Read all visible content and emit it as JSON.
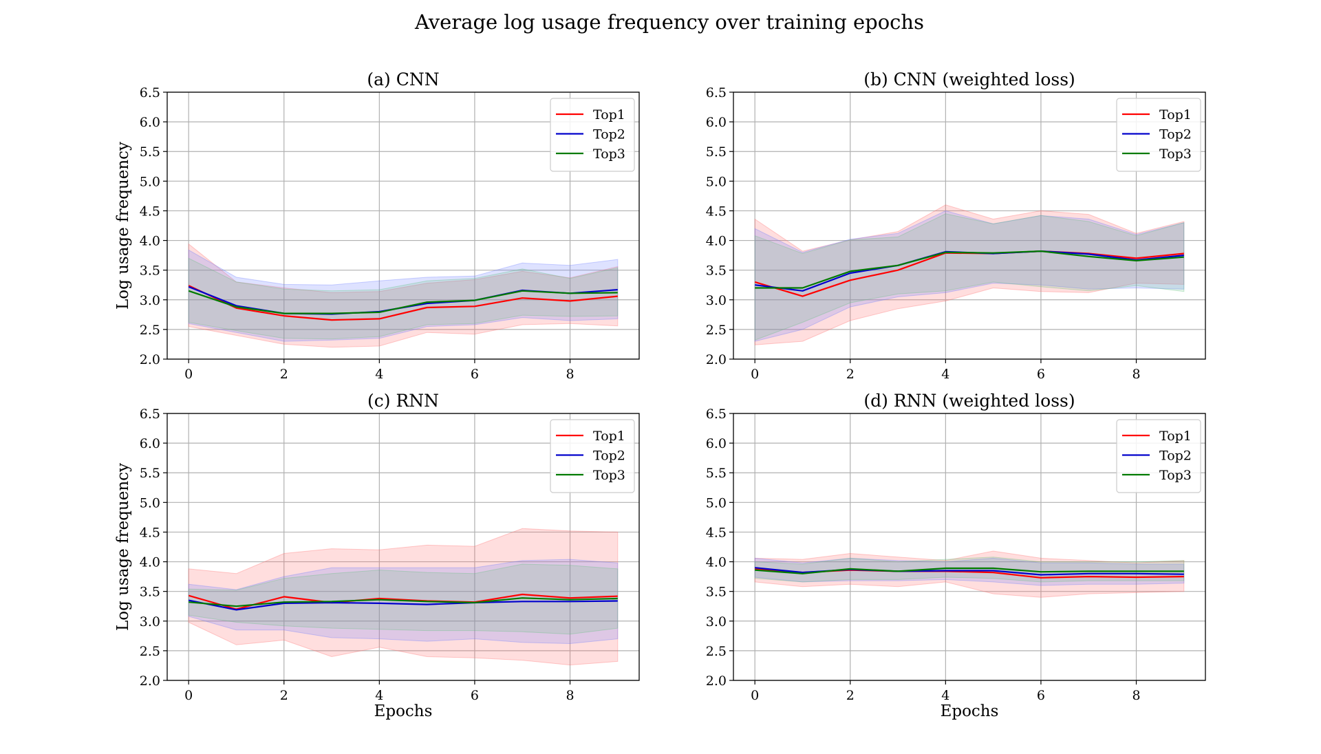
{
  "figure": {
    "title": "Average log usage frequency over training epochs"
  },
  "colors": {
    "Top1": "#ff0000",
    "Top2": "#0000cc",
    "Top3": "#007a00",
    "Top1_band": "#ff6a6a",
    "Top2_band": "#6a7cff",
    "Top3_band": "#5fbf7a"
  },
  "chart_data": [
    {
      "type": "line",
      "title": "(a) CNN",
      "xlabel": "",
      "ylabel": "Log usage frequency",
      "xlim": [
        -0.45,
        9.45
      ],
      "ylim": [
        2.0,
        6.5
      ],
      "x_ticks": [
        0,
        2,
        4,
        6,
        8
      ],
      "y_ticks": [
        "2.0",
        "2.5",
        "3.0",
        "3.5",
        "4.0",
        "4.5",
        "5.0",
        "5.5",
        "6.0",
        "6.5"
      ],
      "grid": true,
      "legend": "upper-right",
      "x": [
        0,
        1,
        2,
        3,
        4,
        5,
        6,
        7,
        8,
        9
      ],
      "series": [
        {
          "name": "Top1",
          "values": [
            3.24,
            2.86,
            2.73,
            2.66,
            2.68,
            2.87,
            2.89,
            3.03,
            2.98,
            3.06
          ],
          "lower": [
            2.55,
            2.4,
            2.25,
            2.2,
            2.22,
            2.45,
            2.42,
            2.58,
            2.6,
            2.56
          ],
          "upper": [
            3.94,
            3.3,
            3.2,
            3.12,
            3.14,
            3.28,
            3.34,
            3.48,
            3.37,
            3.56
          ]
        },
        {
          "name": "Top2",
          "values": [
            3.22,
            2.9,
            2.77,
            2.76,
            2.8,
            2.94,
            2.99,
            3.16,
            3.11,
            3.17
          ],
          "lower": [
            2.6,
            2.45,
            2.3,
            2.32,
            2.35,
            2.55,
            2.58,
            2.7,
            2.65,
            2.68
          ],
          "upper": [
            3.84,
            3.38,
            3.26,
            3.25,
            3.32,
            3.38,
            3.4,
            3.62,
            3.58,
            3.68
          ]
        },
        {
          "name": "Top3",
          "values": [
            3.15,
            2.88,
            2.77,
            2.77,
            2.79,
            2.96,
            2.99,
            3.15,
            3.11,
            3.12
          ],
          "lower": [
            2.62,
            2.48,
            2.35,
            2.34,
            2.38,
            2.58,
            2.6,
            2.74,
            2.72,
            2.73
          ],
          "upper": [
            3.7,
            3.3,
            3.18,
            3.15,
            3.17,
            3.32,
            3.36,
            3.52,
            3.36,
            3.54
          ]
        }
      ]
    },
    {
      "type": "line",
      "title": "(b) CNN (weighted loss)",
      "xlabel": "",
      "ylabel": "",
      "xlim": [
        -0.45,
        9.45
      ],
      "ylim": [
        2.0,
        6.5
      ],
      "x_ticks": [
        0,
        2,
        4,
        6,
        8
      ],
      "y_ticks": [
        "2.0",
        "2.5",
        "3.0",
        "3.5",
        "4.0",
        "4.5",
        "5.0",
        "5.5",
        "6.0",
        "6.5"
      ],
      "grid": true,
      "legend": "upper-right",
      "x": [
        0,
        1,
        2,
        3,
        4,
        5,
        6,
        7,
        8,
        9
      ],
      "series": [
        {
          "name": "Top1",
          "values": [
            3.3,
            3.06,
            3.33,
            3.5,
            3.79,
            3.78,
            3.82,
            3.78,
            3.7,
            3.78
          ],
          "lower": [
            2.24,
            2.3,
            2.65,
            2.85,
            2.98,
            3.2,
            3.14,
            3.12,
            3.28,
            3.26
          ],
          "upper": [
            4.36,
            3.82,
            4.01,
            4.15,
            4.6,
            4.36,
            4.5,
            4.44,
            4.12,
            4.32
          ]
        },
        {
          "name": "Top2",
          "values": [
            3.25,
            3.15,
            3.45,
            3.58,
            3.81,
            3.78,
            3.82,
            3.77,
            3.67,
            3.75
          ],
          "lower": [
            2.3,
            2.5,
            2.88,
            3.05,
            3.12,
            3.28,
            3.25,
            3.18,
            3.2,
            3.18
          ],
          "upper": [
            4.2,
            3.8,
            4.02,
            4.12,
            4.5,
            4.28,
            4.42,
            4.36,
            4.1,
            4.3
          ]
        },
        {
          "name": "Top3",
          "values": [
            3.2,
            3.2,
            3.48,
            3.58,
            3.8,
            3.79,
            3.82,
            3.73,
            3.66,
            3.72
          ],
          "lower": [
            2.32,
            2.62,
            2.95,
            3.1,
            3.15,
            3.3,
            3.22,
            3.15,
            3.24,
            3.14
          ],
          "upper": [
            4.08,
            3.78,
            4.01,
            4.06,
            4.45,
            4.28,
            4.42,
            4.32,
            4.08,
            4.3
          ]
        }
      ]
    },
    {
      "type": "line",
      "title": "(c) RNN",
      "xlabel": "Epochs",
      "ylabel": "Log usage frequency",
      "xlim": [
        -0.45,
        9.45
      ],
      "ylim": [
        2.0,
        6.5
      ],
      "x_ticks": [
        0,
        2,
        4,
        6,
        8
      ],
      "y_ticks": [
        "2.0",
        "2.5",
        "3.0",
        "3.5",
        "4.0",
        "4.5",
        "5.0",
        "5.5",
        "6.0",
        "6.5"
      ],
      "grid": true,
      "legend": "upper-right",
      "x": [
        0,
        1,
        2,
        3,
        4,
        5,
        6,
        7,
        8,
        9
      ],
      "series": [
        {
          "name": "Top1",
          "values": [
            3.43,
            3.2,
            3.41,
            3.31,
            3.38,
            3.34,
            3.32,
            3.45,
            3.39,
            3.42
          ],
          "lower": [
            2.98,
            2.6,
            2.68,
            2.4,
            2.56,
            2.4,
            2.38,
            2.34,
            2.26,
            2.32
          ],
          "upper": [
            3.88,
            3.8,
            4.14,
            4.22,
            4.2,
            4.28,
            4.26,
            4.56,
            4.52,
            4.5
          ]
        },
        {
          "name": "Top2",
          "values": [
            3.35,
            3.19,
            3.3,
            3.31,
            3.3,
            3.28,
            3.31,
            3.33,
            3.33,
            3.34
          ],
          "lower": [
            3.08,
            2.85,
            2.85,
            2.72,
            2.7,
            2.66,
            2.7,
            2.64,
            2.62,
            2.7
          ],
          "upper": [
            3.62,
            3.53,
            3.75,
            3.9,
            3.9,
            3.9,
            3.9,
            4.02,
            4.04,
            3.98
          ]
        },
        {
          "name": "Top3",
          "values": [
            3.32,
            3.25,
            3.32,
            3.33,
            3.36,
            3.33,
            3.31,
            3.39,
            3.36,
            3.38
          ],
          "lower": [
            3.1,
            2.98,
            2.92,
            2.88,
            2.86,
            2.84,
            2.84,
            2.82,
            2.78,
            2.88
          ],
          "upper": [
            3.54,
            3.52,
            3.72,
            3.8,
            3.86,
            3.82,
            3.8,
            3.96,
            3.94,
            3.88
          ]
        }
      ]
    },
    {
      "type": "line",
      "title": "(d) RNN (weighted loss)",
      "xlabel": "Epochs",
      "ylabel": "",
      "xlim": [
        -0.45,
        9.45
      ],
      "ylim": [
        2.0,
        6.5
      ],
      "x_ticks": [
        0,
        2,
        4,
        6,
        8
      ],
      "y_ticks": [
        "2.0",
        "2.5",
        "3.0",
        "3.5",
        "4.0",
        "4.5",
        "5.0",
        "5.5",
        "6.0",
        "6.5"
      ],
      "grid": true,
      "legend": "upper-right",
      "x": [
        0,
        1,
        2,
        3,
        4,
        5,
        6,
        7,
        8,
        9
      ],
      "series": [
        {
          "name": "Top1",
          "values": [
            3.88,
            3.82,
            3.86,
            3.84,
            3.84,
            3.82,
            3.73,
            3.75,
            3.74,
            3.75
          ],
          "lower": [
            3.66,
            3.58,
            3.62,
            3.58,
            3.66,
            3.46,
            3.4,
            3.46,
            3.48,
            3.5
          ],
          "upper": [
            4.06,
            4.04,
            4.14,
            4.08,
            4.02,
            4.18,
            4.06,
            4.02,
            3.98,
            4.02
          ]
        },
        {
          "name": "Top2",
          "values": [
            3.9,
            3.82,
            3.87,
            3.84,
            3.85,
            3.85,
            3.78,
            3.8,
            3.8,
            3.79
          ],
          "lower": [
            3.74,
            3.66,
            3.68,
            3.68,
            3.7,
            3.66,
            3.6,
            3.62,
            3.62,
            3.64
          ],
          "upper": [
            4.06,
            3.98,
            4.06,
            4.02,
            4.0,
            4.06,
            3.98,
            3.98,
            3.96,
            3.96
          ]
        },
        {
          "name": "Top3",
          "values": [
            3.86,
            3.8,
            3.88,
            3.84,
            3.89,
            3.89,
            3.83,
            3.84,
            3.84,
            3.84
          ],
          "lower": [
            3.72,
            3.66,
            3.7,
            3.7,
            3.74,
            3.72,
            3.66,
            3.68,
            3.68,
            3.68
          ],
          "upper": [
            4.0,
            3.96,
            4.06,
            4.0,
            4.04,
            4.08,
            4.0,
            4.0,
            4.0,
            4.02
          ]
        }
      ]
    }
  ]
}
